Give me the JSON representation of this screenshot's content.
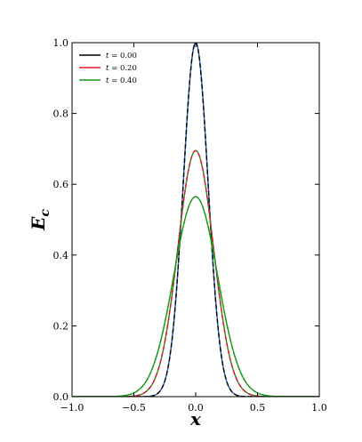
{
  "chart_data": {
    "type": "line",
    "xlabel": "x",
    "ylabel_main": "E",
    "ylabel_sub": "c",
    "xlim": [
      -1.0,
      1.0
    ],
    "ylim": [
      0.0,
      1.0
    ],
    "x_ticks": [
      "−1.0",
      "−0.5",
      "0.0",
      "0.5",
      "1.0"
    ],
    "y_ticks": [
      "0.0",
      "0.2",
      "0.4",
      "0.6",
      "0.8",
      "1.0"
    ],
    "x_tick_values": [
      -1.0,
      -0.5,
      0.0,
      0.5,
      1.0
    ],
    "y_tick_values": [
      0.0,
      0.2,
      0.4,
      0.6,
      0.8,
      1.0
    ],
    "grid": false,
    "legend_position": "top-left",
    "series": [
      {
        "name": "t = 0.00",
        "legend_var": "t",
        "legend_value": "= 0.00",
        "color": "#000000",
        "peak": 1.0,
        "sigma": 0.1,
        "reference_color": "#1f5fbf"
      },
      {
        "name": "t = 0.20",
        "legend_var": "t",
        "legend_value": "= 0.20",
        "color": "#e8102e",
        "peak": 0.695,
        "sigma": 0.144,
        "reference_color": "#1a9a1a"
      },
      {
        "name": "t = 0.40",
        "legend_var": "t",
        "legend_value": "= 0.40",
        "color": "#1a9a1a",
        "peak": 0.565,
        "sigma": 0.177,
        "reference_color": "#1a9a1a"
      }
    ]
  }
}
